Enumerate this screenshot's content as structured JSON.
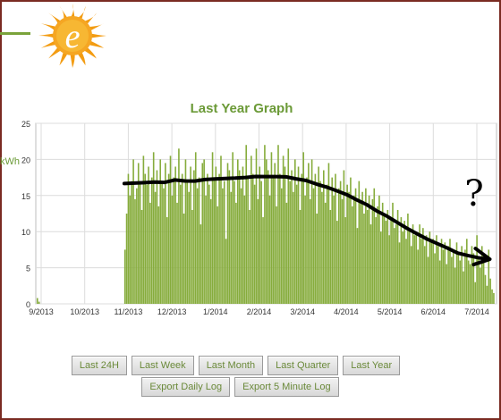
{
  "logo": {
    "letter": "e"
  },
  "chart": {
    "title": "Last Year Graph",
    "y_unit": "kWh",
    "annotation": "?"
  },
  "buttons_row1": [
    "Last 24H",
    "Last Week",
    "Last Month",
    "Last Quarter",
    "Last Year"
  ],
  "buttons_row2": [
    "Export Daily Log",
    "Export 5 Minute Log"
  ],
  "colors": {
    "bar": "#86ac3c",
    "accent": "#6b9a37",
    "frame": "#7a2b22",
    "trend": "#000000"
  },
  "chart_data": {
    "type": "bar",
    "title": "Last Year Graph",
    "ylabel": "kWh",
    "xlabel": "",
    "ylim": [
      0,
      25
    ],
    "yticks": [
      0,
      5,
      10,
      15,
      20,
      25
    ],
    "xticks": [
      "9/2013",
      "10/2013",
      "11/2013",
      "12/2013",
      "1/2014",
      "2/2014",
      "3/2014",
      "4/2014",
      "5/2014",
      "6/2014",
      "7/2014"
    ],
    "grid": true,
    "series": [
      {
        "values": [
          0.8,
          0.3,
          0,
          0,
          0,
          0,
          0,
          0,
          0,
          0,
          0,
          0,
          0,
          0,
          0,
          0,
          0,
          0,
          0,
          0,
          0,
          0,
          0,
          0,
          0,
          0,
          0,
          0,
          0,
          0,
          0,
          0,
          0,
          0,
          0,
          0,
          0,
          0,
          0,
          0,
          0,
          0,
          0,
          0,
          0,
          0,
          0,
          0,
          0,
          0,
          0,
          0,
          7.5,
          12.5,
          18,
          15,
          17,
          20,
          14.5,
          16,
          19.5,
          17,
          13,
          20.5,
          18,
          16.5,
          19,
          14,
          17.5,
          21,
          15.5,
          18.5,
          13.5,
          20,
          17,
          16,
          19.5,
          12,
          18,
          20.5,
          15,
          17.5,
          19,
          14,
          21.5,
          16.5,
          18,
          12.5,
          20,
          17,
          15.5,
          19,
          13,
          18.5,
          21,
          16,
          17.5,
          11,
          19.5,
          20,
          15,
          18,
          16.5,
          14.5,
          21,
          17.5,
          19,
          13.5,
          18,
          20.5,
          16,
          17,
          9,
          19.5,
          18.5,
          15.5,
          21,
          17,
          14,
          20,
          18.5,
          16,
          19,
          15,
          22,
          17.5,
          13,
          20.5,
          18,
          16.5,
          21.5,
          14.5,
          19,
          17,
          12,
          22,
          20,
          18.5,
          15,
          21,
          17.5,
          19.5,
          13.5,
          22,
          18,
          16,
          20.5,
          19,
          14,
          21.5,
          17,
          18.5,
          15.5,
          20,
          16.5,
          19,
          13,
          18,
          21,
          15,
          17.5,
          19.5,
          14.5,
          20,
          16,
          18,
          12.5,
          19,
          17,
          15.5,
          18.5,
          14,
          16.5,
          19.5,
          13,
          17.5,
          15,
          18,
          11.5,
          16,
          17,
          14.5,
          18.5,
          12,
          16.5,
          15.5,
          17.5,
          13.5,
          15,
          16,
          10.5,
          17,
          14,
          15.5,
          12.5,
          16,
          13,
          15,
          11,
          14.5,
          16,
          12,
          13.5,
          15,
          10,
          14,
          12.5,
          11.5,
          13,
          9.5,
          12,
          14,
          10.5,
          11,
          13,
          8.5,
          12,
          10,
          11.5,
          9,
          12.5,
          10.5,
          8,
          11,
          9.5,
          10,
          7.5,
          11,
          9,
          10.5,
          8,
          9.5,
          6.5,
          10,
          8.5,
          9,
          7,
          9.5,
          8,
          6,
          9,
          7.5,
          8.5,
          5.5,
          8,
          9,
          6.5,
          7.5,
          5,
          8.5,
          7,
          6,
          8,
          4.5,
          7.5,
          9,
          6,
          5.5,
          8,
          7,
          3,
          9.5,
          6.5,
          5,
          8,
          7,
          4,
          2.5,
          7.5,
          3.5,
          2,
          1.5
        ]
      }
    ]
  }
}
